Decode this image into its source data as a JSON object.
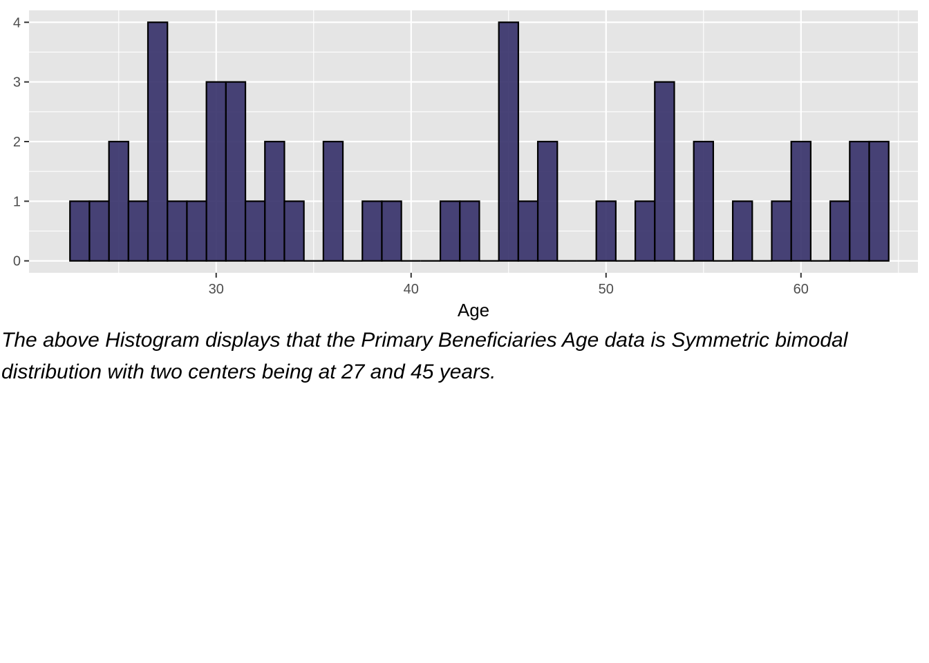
{
  "chart_data": {
    "type": "bar",
    "subtype": "histogram",
    "title": "",
    "xlabel": "Age",
    "ylabel": "",
    "xlim": [
      20.4,
      66.0
    ],
    "ylim": [
      -0.2,
      4.2
    ],
    "bin_width": 1,
    "x_ticks": [
      30,
      40,
      50,
      60
    ],
    "y_ticks": [
      0,
      1,
      2,
      3,
      4
    ],
    "grid": true,
    "bins": [
      {
        "left": 22.5,
        "count": 1
      },
      {
        "left": 23.5,
        "count": 1
      },
      {
        "left": 24.5,
        "count": 2
      },
      {
        "left": 25.5,
        "count": 1
      },
      {
        "left": 26.5,
        "count": 4
      },
      {
        "left": 27.5,
        "count": 1
      },
      {
        "left": 28.5,
        "count": 1
      },
      {
        "left": 29.5,
        "count": 3
      },
      {
        "left": 30.5,
        "count": 3
      },
      {
        "left": 31.5,
        "count": 1
      },
      {
        "left": 32.5,
        "count": 2
      },
      {
        "left": 33.5,
        "count": 1
      },
      {
        "left": 34.5,
        "count": 0
      },
      {
        "left": 35.5,
        "count": 2
      },
      {
        "left": 36.5,
        "count": 0
      },
      {
        "left": 37.5,
        "count": 1
      },
      {
        "left": 38.5,
        "count": 1
      },
      {
        "left": 39.5,
        "count": 0
      },
      {
        "left": 40.5,
        "count": 0
      },
      {
        "left": 41.5,
        "count": 1
      },
      {
        "left": 42.5,
        "count": 1
      },
      {
        "left": 43.5,
        "count": 0
      },
      {
        "left": 44.5,
        "count": 4
      },
      {
        "left": 45.5,
        "count": 1
      },
      {
        "left": 46.5,
        "count": 2
      },
      {
        "left": 47.5,
        "count": 0
      },
      {
        "left": 48.5,
        "count": 0
      },
      {
        "left": 49.5,
        "count": 1
      },
      {
        "left": 50.5,
        "count": 0
      },
      {
        "left": 51.5,
        "count": 1
      },
      {
        "left": 52.5,
        "count": 3
      },
      {
        "left": 53.5,
        "count": 0
      },
      {
        "left": 54.5,
        "count": 2
      },
      {
        "left": 55.5,
        "count": 0
      },
      {
        "left": 56.5,
        "count": 1
      },
      {
        "left": 57.5,
        "count": 0
      },
      {
        "left": 58.5,
        "count": 1
      },
      {
        "left": 59.5,
        "count": 2
      },
      {
        "left": 60.5,
        "count": 0
      },
      {
        "left": 61.5,
        "count": 1
      },
      {
        "left": 62.5,
        "count": 2
      },
      {
        "left": 63.5,
        "count": 2
      }
    ],
    "colors": {
      "fill": "#38336b",
      "stroke": "#000000",
      "panel": "#e5e5e5",
      "grid": "#ffffff"
    }
  },
  "caption": "The above Histogram displays that the Primary Beneficiaries Age data is Symmetric bimodal distribution with two centers being at 27 and 45 years."
}
